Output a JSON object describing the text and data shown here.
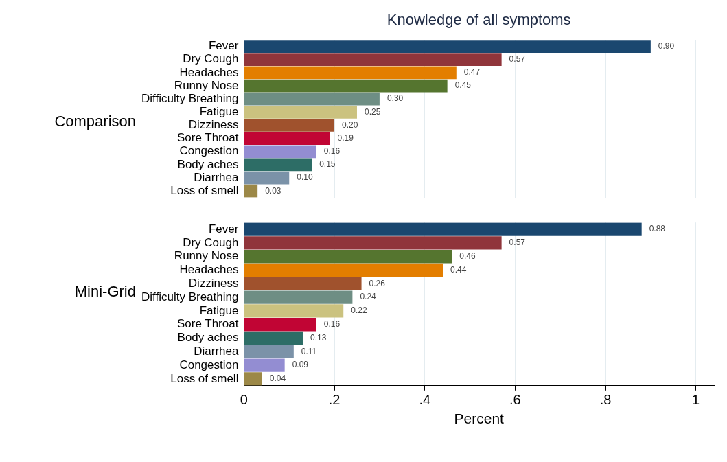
{
  "chart_data": [
    {
      "type": "bar",
      "orientation": "horizontal",
      "title": "Knowledge of all symptoms",
      "ylabel": "Comparison",
      "tick_labels": "y",
      "grid": "x",
      "xticks": [
        {
          "value": 0.2,
          "label": null
        },
        {
          "value": 0.4,
          "label": null
        },
        {
          "value": 0.6,
          "label": null
        },
        {
          "value": 0.8,
          "label": null
        },
        {
          "value": 1,
          "label": null
        }
      ],
      "categories": [
        "Fever",
        "Dry Cough",
        "Headaches",
        "Runny Nose",
        "Difficulty Breathing",
        "Fatigue",
        "Dizziness",
        "Sore Throat",
        "Congestion",
        "Body aches",
        "Diarrhea",
        "Loss of smell"
      ],
      "values": [
        0.9,
        0.57,
        0.47,
        0.45,
        0.3,
        0.25,
        0.2,
        0.19,
        0.16,
        0.15,
        0.1,
        0.03
      ],
      "value_labels": [
        "0.90",
        "0.57",
        "0.47",
        "0.45",
        "0.30",
        "0.25",
        "0.20",
        "0.19",
        "0.16",
        "0.15",
        "0.10",
        "0.03"
      ],
      "colors": [
        "#1a476f",
        "#90353b",
        "#e37e00",
        "#55752f",
        "#6e8e84",
        "#cbc27f",
        "#a0522d",
        "#c10534",
        "#938dd2",
        "#2d6d66",
        "#7b92a8",
        "#9c8847"
      ]
    },
    {
      "type": "bar",
      "orientation": "horizontal",
      "ylabel": "Mini-Grid",
      "xlabel": "Percent",
      "grid": "x",
      "xlim": [
        0,
        1.04
      ],
      "xticks": [
        0,
        {
          "value": 0.2,
          "label": ".2"
        },
        {
          "value": 0.4,
          "label": ".4"
        },
        {
          "value": 0.6,
          "label": ".6"
        },
        {
          "value": 0.8,
          "label": ".8"
        },
        1
      ],
      "categories": [
        "Fever",
        "Dry Cough",
        "Runny Nose",
        "Headaches",
        "Dizziness",
        "Difficulty Breathing",
        "Fatigue",
        "Sore Throat",
        "Body aches",
        "Diarrhea",
        "Congestion",
        "Loss of smell"
      ],
      "values": [
        0.88,
        0.57,
        0.46,
        0.44,
        0.26,
        0.24,
        0.22,
        0.16,
        0.13,
        0.11,
        0.09,
        0.04
      ],
      "value_labels": [
        "0.88",
        "0.57",
        "0.46",
        "0.44",
        "0.26",
        "0.24",
        "0.22",
        "0.16",
        "0.13",
        "0.11",
        "0.09",
        "0.04"
      ],
      "colors": [
        "#1a476f",
        "#90353b",
        "#55752f",
        "#e37e00",
        "#a0522d",
        "#6e8e84",
        "#cbc27f",
        "#c10534",
        "#2d6d66",
        "#7b92a8",
        "#938dd2",
        "#9c8847"
      ]
    }
  ]
}
